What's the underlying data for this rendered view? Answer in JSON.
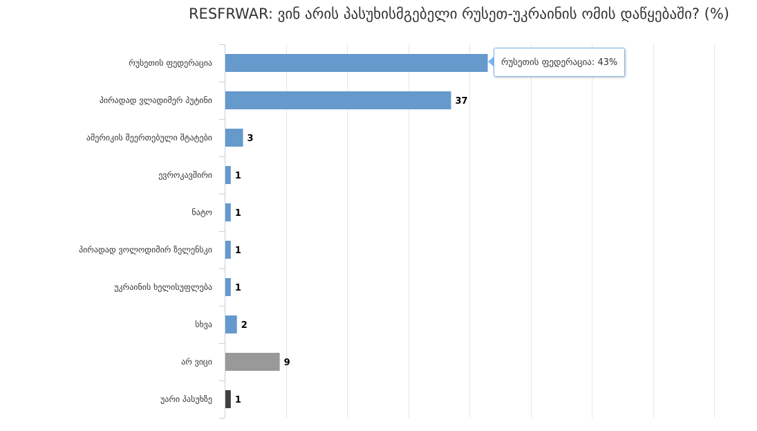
{
  "chart_data": {
    "type": "bar",
    "orientation": "horizontal",
    "title": "RESFRWAR: ვინ არის პასუხისმგებელი რუსეთ-უკრაინის ომის დაწყებაში? (%)",
    "categories": [
      "რუსეთის ფედერაცია",
      "პირადად ვლადიმერ პუტინი",
      "ამერიკის შეერთებული შტატები",
      "ევროკავშირი",
      "ნატო",
      "პირადად ვოლოდიმირ ზელენსკი",
      "უკრაინის ხელისუფლება",
      "სხვა",
      "არ ვიცი",
      "უარი პასუხზე"
    ],
    "values": [
      43,
      37,
      3,
      1,
      1,
      1,
      1,
      2,
      9,
      1
    ],
    "value_labels": [
      "",
      "37",
      "3",
      "1",
      "1",
      "1",
      "1",
      "2",
      "9",
      "1"
    ],
    "colors": [
      "#6699cc",
      "#6699cc",
      "#6699cc",
      "#6699cc",
      "#6699cc",
      "#6699cc",
      "#6699cc",
      "#6699cc",
      "#999999",
      "#404040"
    ],
    "xlim": [
      0,
      80
    ],
    "grid": true,
    "tooltip": "რუსეთის ფედერაცია: 43%"
  }
}
